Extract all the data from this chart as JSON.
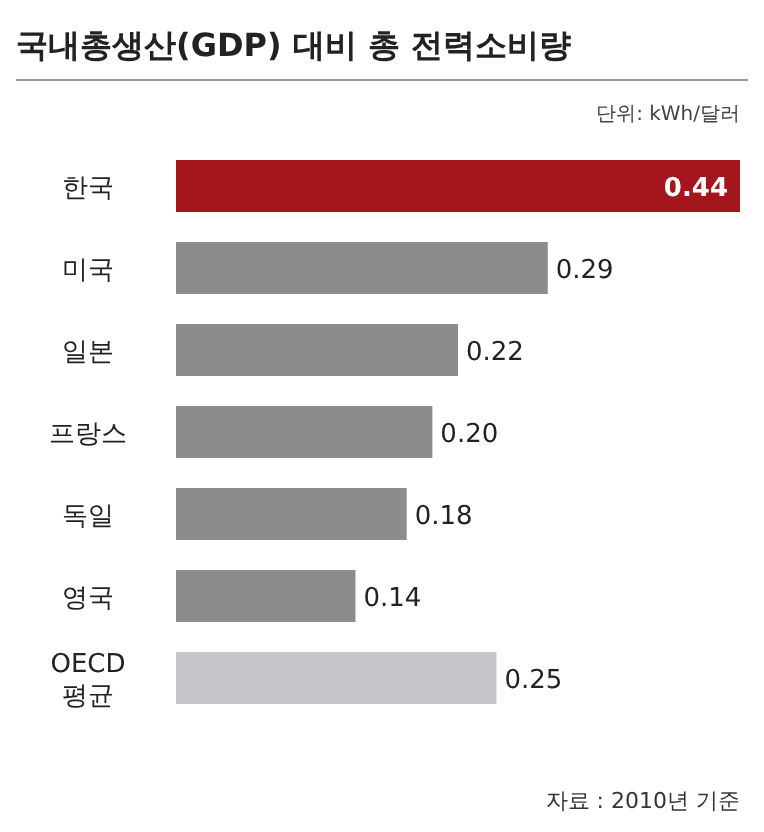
{
  "chart_data": {
    "type": "bar",
    "orientation": "horizontal",
    "title": "국내총생산(GDP) 대비 총 전력소비량",
    "subtitle": "단위: kWh/달러",
    "categories": [
      "한국",
      "미국",
      "일본",
      "프랑스",
      "독일",
      "영국",
      "OECD\n평균"
    ],
    "values": [
      0.44,
      0.29,
      0.22,
      0.2,
      0.18,
      0.14,
      0.25
    ],
    "colors": [
      "#a3161c",
      "#8c8c8e",
      "#8c8c8e",
      "#8c8c8e",
      "#8c8c8e",
      "#8c8c8e",
      "#c6c6ca"
    ],
    "value_labels": [
      "0.44",
      "0.29",
      "0.22",
      "0.20",
      "0.18",
      "0.14",
      "0.25"
    ],
    "annotations": [
      "자료 : 2010년 기준"
    ]
  }
}
